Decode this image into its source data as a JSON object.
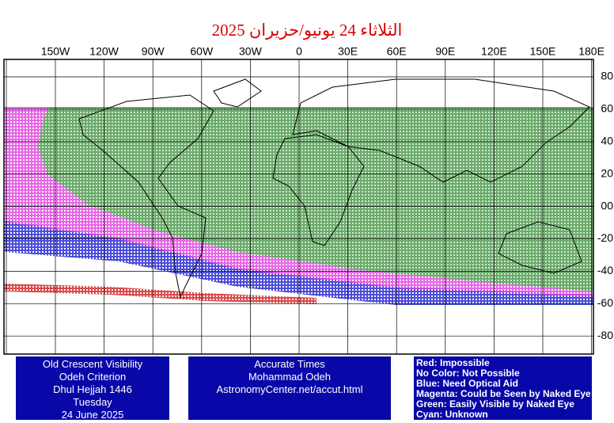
{
  "title": "الثلاثاء 24 يونيو/حزيران 2025",
  "lon_labels": [
    "150W",
    "120W",
    "90W",
    "60W",
    "30W",
    "0",
    "30E",
    "60E",
    "90E",
    "120E",
    "150E",
    "180E"
  ],
  "lat_labels": [
    "80",
    "60",
    "40",
    "20",
    "00",
    "-20",
    "-40",
    "-60",
    "-80"
  ],
  "info_left": [
    "Old Crescent Visibility",
    "Odeh Criterion",
    "Dhul Hejjah 1446",
    "Tuesday",
    "24 June 2025"
  ],
  "info_middle": [
    "Accurate Times",
    "Mohammad Odeh",
    "AstronomyCenter.net/accut.html"
  ],
  "legend": [
    "Red: Impossible",
    "No Color: Not Possible",
    "Blue: Need Optical Aid",
    "Magenta: Could be Seen by Naked Eye",
    "Green: Easily Visible by Naked Eye",
    "Cyan: Unknown"
  ]
}
